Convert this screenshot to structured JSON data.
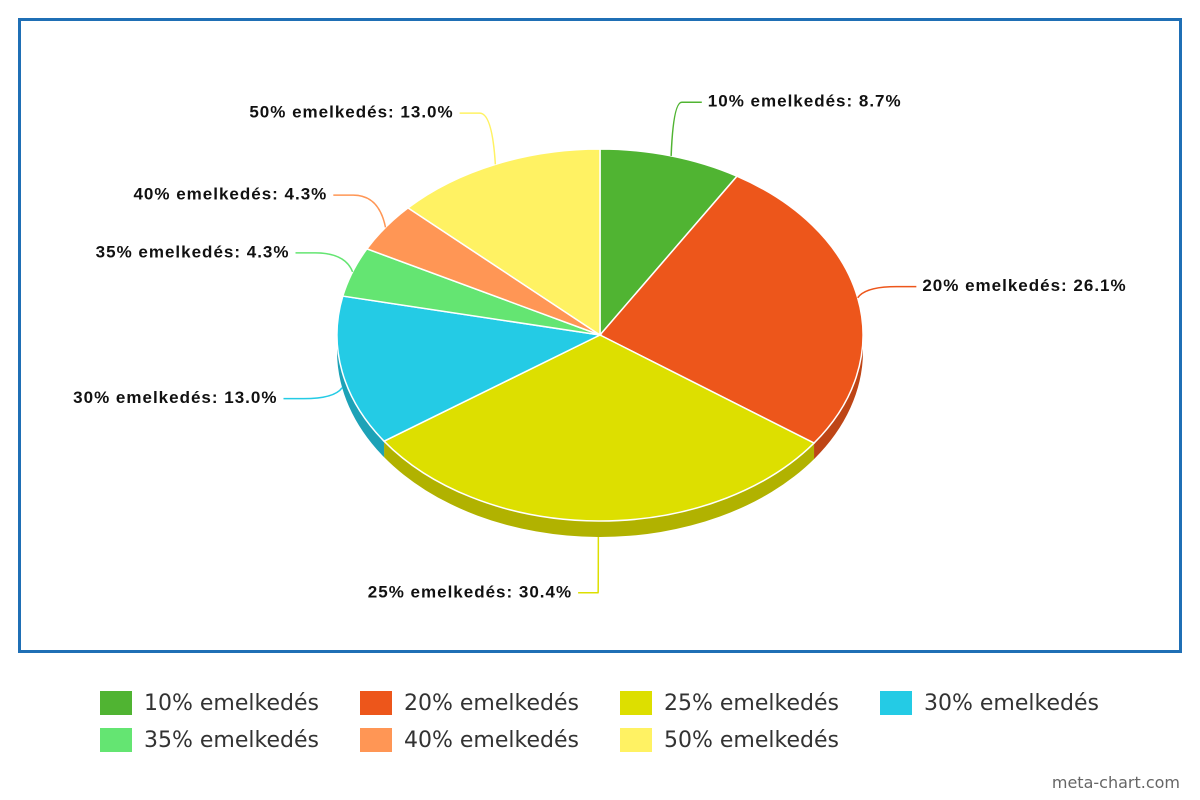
{
  "chart_data": {
    "type": "pie",
    "categories": [
      "10% emelkedés",
      "20% emelkedés",
      "25% emelkedés",
      "30% emelkedés",
      "35% emelkedés",
      "40% emelkedés",
      "50% emelkedés"
    ],
    "values": [
      8.7,
      26.1,
      30.4,
      13.0,
      4.3,
      4.3,
      13.0
    ],
    "value_labels": [
      "10% emelkedés: 8.7%",
      "20% emelkedés: 26.1%",
      "25% emelkedés: 30.4%",
      "30% emelkedés: 13.0%",
      "35% emelkedés: 4.3%",
      "40% emelkedés: 4.3%",
      "50% emelkedés: 13.0%"
    ],
    "colors": [
      "#50b432",
      "#ed561b",
      "#dddf00",
      "#24cbe5",
      "#64e572",
      "#ff9655",
      "#fff263"
    ],
    "legend": "bottom",
    "source": "meta-chart.com"
  }
}
